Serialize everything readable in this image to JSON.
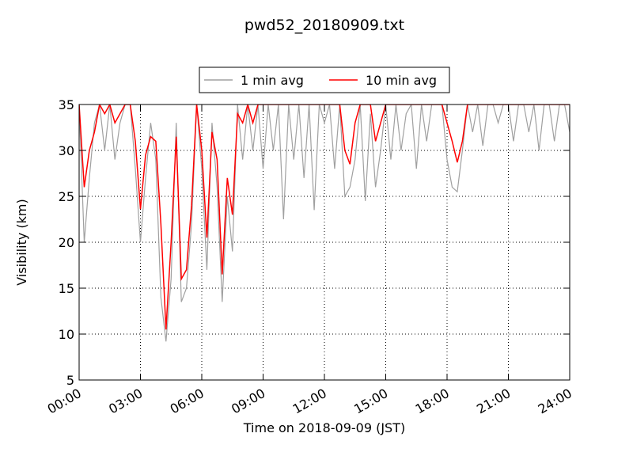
{
  "chart_data": {
    "type": "line",
    "title": "pwd52_20180909.txt",
    "xlabel": "Time on 2018-09-09 (JST)",
    "ylabel": "Visibility (km)",
    "x": [
      0,
      0.25,
      0.5,
      0.75,
      1,
      1.25,
      1.5,
      1.75,
      2,
      2.25,
      2.5,
      2.75,
      3,
      3.25,
      3.5,
      3.75,
      4,
      4.25,
      4.5,
      4.75,
      5,
      5.25,
      5.5,
      5.75,
      6,
      6.25,
      6.5,
      6.75,
      7,
      7.25,
      7.5,
      7.75,
      8,
      8.25,
      8.5,
      8.75,
      9,
      9.25,
      9.5,
      9.75,
      10,
      10.25,
      10.5,
      10.75,
      11,
      11.25,
      11.5,
      11.75,
      12,
      12.25,
      12.5,
      12.75,
      13,
      13.25,
      13.5,
      13.75,
      14,
      14.25,
      14.5,
      14.75,
      15,
      15.25,
      15.5,
      15.75,
      16,
      16.25,
      16.5,
      16.75,
      17,
      17.25,
      17.5,
      17.75,
      18,
      18.25,
      18.5,
      18.75,
      19,
      19.25,
      19.5,
      19.75,
      20,
      20.25,
      20.5,
      20.75,
      21,
      21.25,
      21.5,
      21.75,
      22,
      22.25,
      22.5,
      22.75,
      23,
      23.25,
      23.5,
      23.75,
      24
    ],
    "series": [
      {
        "name": "1 min avg",
        "color": "#a0a0a0",
        "values": [
          35,
          20,
          27,
          33,
          35,
          30,
          35,
          29,
          33,
          35,
          35,
          28,
          20,
          27,
          33,
          29,
          14,
          9.2,
          16,
          33,
          13.5,
          15,
          22,
          35,
          28,
          17,
          33,
          26,
          13.5,
          25,
          19,
          35,
          29,
          35,
          30,
          35,
          28,
          35,
          30,
          35,
          22.5,
          35,
          29,
          35,
          27,
          35,
          23.5,
          35,
          33,
          35,
          28,
          35,
          25,
          26,
          29,
          35,
          24.5,
          34,
          26,
          30,
          35,
          29,
          35,
          30,
          34,
          35,
          28,
          35,
          31,
          35,
          35,
          35,
          29,
          26,
          25.5,
          30,
          35,
          32,
          35,
          30.5,
          35,
          35,
          33,
          35,
          35,
          31,
          35,
          35,
          32,
          35,
          30,
          35,
          35,
          31,
          35,
          35,
          32
        ]
      },
      {
        "name": "10 min avg",
        "color": "#ff0000",
        "values": [
          35,
          26,
          30,
          32,
          35,
          34,
          35,
          33,
          34,
          35,
          35,
          31,
          23.6,
          29.5,
          31.5,
          31,
          22,
          10.5,
          20,
          31.5,
          16,
          17,
          24,
          35,
          30,
          20.5,
          32,
          29,
          16.5,
          27,
          23,
          34,
          33,
          35,
          33,
          35,
          35,
          35,
          35,
          35,
          35,
          35,
          35,
          35,
          35,
          35,
          35,
          35,
          35,
          35,
          35,
          35,
          30,
          28.5,
          33,
          35,
          35,
          35,
          31,
          33,
          35,
          35,
          35,
          35,
          35,
          35,
          35,
          35,
          35,
          35,
          35,
          35,
          33,
          31,
          28.7,
          31,
          35,
          35,
          35,
          35,
          35,
          35,
          35,
          35,
          35,
          35,
          35,
          35,
          35,
          35,
          35,
          35,
          35,
          35,
          35,
          35,
          35
        ]
      }
    ],
    "xlim": [
      0,
      24
    ],
    "xticks": [
      {
        "value": 0,
        "label": "00:00"
      },
      {
        "value": 3,
        "label": "03:00"
      },
      {
        "value": 6,
        "label": "06:00"
      },
      {
        "value": 9,
        "label": "09:00"
      },
      {
        "value": 12,
        "label": "12:00"
      },
      {
        "value": 15,
        "label": "15:00"
      },
      {
        "value": 18,
        "label": "18:00"
      },
      {
        "value": 21,
        "label": "21:00"
      },
      {
        "value": 24,
        "label": "24:00"
      }
    ],
    "ylim": [
      5,
      35
    ],
    "yticks": [
      5,
      10,
      15,
      20,
      25,
      30,
      35
    ],
    "grid": true,
    "legend": "upper center"
  }
}
